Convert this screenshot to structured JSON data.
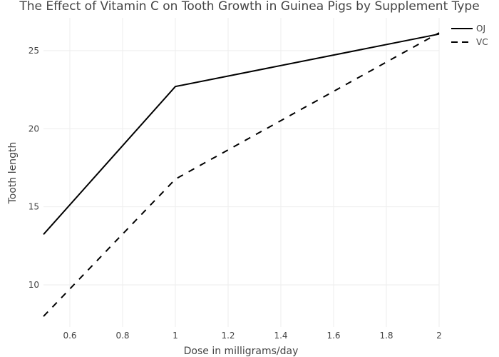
{
  "chart_data": {
    "type": "line",
    "title": "The Effect of Vitamin C on Tooth Growth in Guinea Pigs by Supplement Type",
    "xlabel": "Dose in milligrams/day",
    "ylabel": "Tooth length",
    "xlim": [
      0.5,
      2.0
    ],
    "ylim": [
      7.3,
      27.1
    ],
    "xticks": [
      0.6,
      0.8,
      1.0,
      1.2,
      1.4,
      1.6,
      1.8,
      2.0
    ],
    "xtick_labels": [
      "0.6",
      "0.8",
      "1",
      "1.2",
      "1.4",
      "1.6",
      "1.8",
      "2"
    ],
    "yticks": [
      10,
      15,
      20,
      25
    ],
    "ytick_labels": [
      "10",
      "15",
      "20",
      "25"
    ],
    "grid": true,
    "legend_position": "top-right",
    "series": [
      {
        "name": "OJ",
        "dash": "solid",
        "color": "#000000",
        "x": [
          0.5,
          1.0,
          2.0
        ],
        "y": [
          13.23,
          22.7,
          26.06
        ]
      },
      {
        "name": "VC",
        "dash": "dash",
        "color": "#000000",
        "x": [
          0.5,
          1.0,
          2.0
        ],
        "y": [
          7.98,
          16.77,
          26.14
        ]
      }
    ]
  }
}
